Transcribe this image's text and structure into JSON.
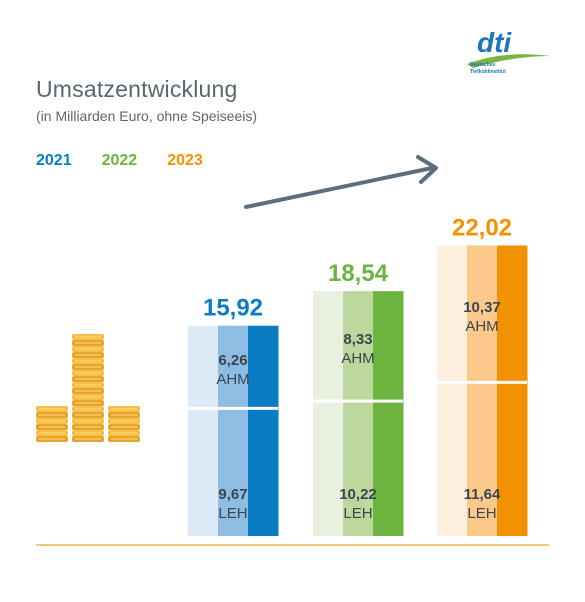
{
  "header": {
    "title": "Umsatzentwicklung",
    "subtitle": "(in Milliarden Euro, ohne Speiseeis)",
    "logo_text": "dti",
    "logo_line1": "Deutsches",
    "logo_line2": "Tiefkühlinstitut"
  },
  "legend": [
    {
      "label": "2021",
      "color": "#0a7cc4"
    },
    {
      "label": "2022",
      "color": "#6db33f"
    },
    {
      "label": "2023",
      "color": "#f39200"
    }
  ],
  "colors": {
    "axis": "#f2b04a",
    "arrow": "#5d6d7e",
    "text_dark": "#3c4650",
    "coin": "#f0b53c"
  },
  "chart_data": {
    "type": "bar",
    "stacked": true,
    "categories": [
      "2021",
      "2022",
      "2023"
    ],
    "series": [
      {
        "name": "LEH",
        "values": [
          9.67,
          10.22,
          11.64
        ]
      },
      {
        "name": "AHM",
        "values": [
          6.26,
          8.33,
          10.37
        ]
      }
    ],
    "totals": [
      15.92,
      18.54,
      22.02
    ],
    "total_labels": [
      "15,92",
      "18,54",
      "22,02"
    ],
    "segment_labels": {
      "LEH": [
        "9,67",
        "10,22",
        "11,64"
      ],
      "AHM": [
        "6,26",
        "8,33",
        "10,37"
      ]
    },
    "segment_names": {
      "LEH": "LEH",
      "AHM": "AHM"
    },
    "colors": {
      "2021": [
        "#dce9f6",
        "#8dbde3",
        "#0a7cc4"
      ],
      "2022": [
        "#e8f1df",
        "#bcd89d",
        "#6db33f"
      ],
      "2023": [
        "#fdeede",
        "#fbc98a",
        "#f39200"
      ]
    },
    "title": "Umsatzentwicklung",
    "subtitle": "(in Milliarden Euro, ohne Speiseeis)"
  }
}
